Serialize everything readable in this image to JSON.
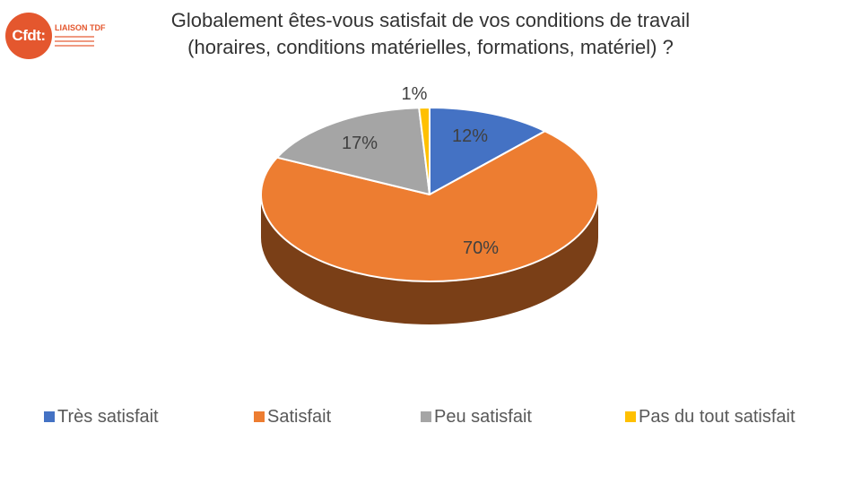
{
  "logo": {
    "text": "Cfdt:",
    "sub": "LIAISON TDF"
  },
  "chart_data": {
    "type": "pie",
    "title": "Globalement êtes-vous satisfait de vos conditions de travail (horaires, conditions matérielles, formations, matériel) ?",
    "categories": [
      "Très satisfait",
      "Satisfait",
      "Peu satisfait",
      "Pas du tout satisfait"
    ],
    "values": [
      12,
      70,
      17,
      1
    ],
    "data_labels": [
      "12%",
      "70%",
      "17%",
      "1%"
    ],
    "colors": [
      "#4472c4",
      "#ed7d31",
      "#a5a5a5",
      "#ffc000"
    ],
    "side_colors": [
      "#2f5597",
      "#7a3f17",
      "#6e6e6e",
      "#b8860b"
    ],
    "legend_position": "bottom",
    "style": "3d"
  }
}
